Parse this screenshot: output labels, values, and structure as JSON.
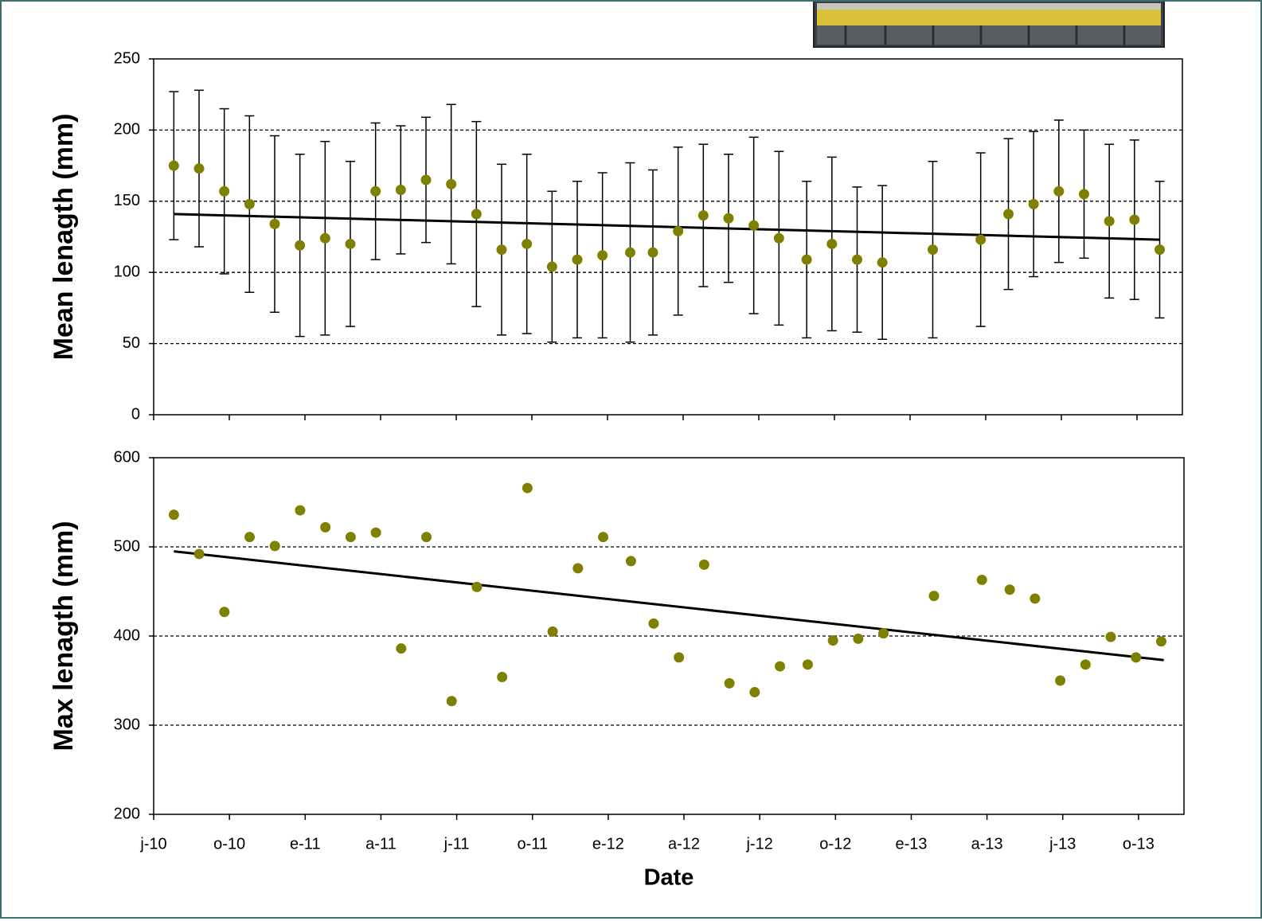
{
  "chart_data": [
    {
      "type": "scatter",
      "ylabel": "Mean lenagth (mm)",
      "xlim": [
        0,
        40.8
      ],
      "xticks": [
        0,
        3,
        6,
        9,
        12,
        15,
        18,
        21,
        24,
        27,
        30,
        33,
        36,
        39
      ],
      "ylim": [
        0,
        250
      ],
      "yticks": [
        0,
        50,
        100,
        150,
        200,
        250
      ],
      "grid": true,
      "series": [
        {
          "color": "#808000",
          "x": [
            0.8,
            1.8,
            2.8,
            3.8,
            4.8,
            5.8,
            6.8,
            7.8,
            8.8,
            9.8,
            10.8,
            11.8,
            12.8,
            13.8,
            14.8,
            15.8,
            16.8,
            17.8,
            18.9,
            19.8,
            20.8,
            21.8,
            22.8,
            23.8,
            24.8,
            25.9,
            26.9,
            27.9,
            28.9,
            30.9,
            32.8,
            33.9,
            34.9,
            35.9,
            36.9,
            37.9,
            38.9,
            39.9
          ],
          "values": [
            175,
            173,
            157,
            148,
            134,
            119,
            124,
            120,
            157,
            158,
            165,
            162,
            141,
            116,
            120,
            104,
            109,
            112,
            114,
            114,
            129,
            140,
            138,
            133,
            124,
            109,
            120,
            109,
            107,
            116,
            123,
            141,
            148,
            157,
            155,
            136,
            137,
            116
          ],
          "errors": [
            52,
            55,
            58,
            62,
            62,
            64,
            68,
            58,
            48,
            45,
            44,
            56,
            65,
            60,
            63,
            53,
            55,
            58,
            63,
            58,
            59,
            50,
            45,
            62,
            61,
            55,
            61,
            51,
            54,
            62,
            61,
            53,
            51,
            50,
            45,
            54,
            56,
            48
          ]
        }
      ],
      "trend": {
        "color": "#000000",
        "x": [
          0.8,
          39.9
        ],
        "values": [
          141,
          123
        ]
      }
    },
    {
      "type": "scatter",
      "ylabel": "Max lenagth (mm)",
      "xlabel": "Date",
      "xlim": [
        0,
        40.8
      ],
      "xticks": [
        {
          "value": 0,
          "label": "j-10"
        },
        {
          "value": 3,
          "label": "o-10"
        },
        {
          "value": 6,
          "label": "e-11"
        },
        {
          "value": 9,
          "label": "a-11"
        },
        {
          "value": 12,
          "label": "j-11"
        },
        {
          "value": 15,
          "label": "o-11"
        },
        {
          "value": 18,
          "label": "e-12"
        },
        {
          "value": 21,
          "label": "a-12"
        },
        {
          "value": 24,
          "label": "j-12"
        },
        {
          "value": 27,
          "label": "o-12"
        },
        {
          "value": 30,
          "label": "e-13"
        },
        {
          "value": 33,
          "label": "a-13"
        },
        {
          "value": 36,
          "label": "j-13"
        },
        {
          "value": 39,
          "label": "o-13"
        }
      ],
      "ylim": [
        200,
        600
      ],
      "yticks": [
        200,
        300,
        400,
        500,
        600
      ],
      "grid": true,
      "series": [
        {
          "color": "#808000",
          "x": [
            0.8,
            1.8,
            2.8,
            3.8,
            4.8,
            5.8,
            6.8,
            7.8,
            8.8,
            9.8,
            10.8,
            11.8,
            12.8,
            13.8,
            14.8,
            15.8,
            16.8,
            17.8,
            18.9,
            19.8,
            20.8,
            21.8,
            22.8,
            23.8,
            24.8,
            25.9,
            26.9,
            27.9,
            28.9,
            30.9,
            32.8,
            33.9,
            34.9,
            35.9,
            36.9,
            37.9,
            38.9,
            39.9
          ],
          "values": [
            536,
            492,
            427,
            511,
            501,
            541,
            522,
            511,
            516,
            386,
            511,
            327,
            455,
            354,
            566,
            405,
            476,
            511,
            484,
            414,
            376,
            480,
            347,
            337,
            366,
            368,
            395,
            397,
            403,
            445,
            463,
            452,
            442,
            350,
            368,
            399,
            376,
            394
          ]
        }
      ],
      "trend": {
        "color": "#000000",
        "x": [
          0.8,
          40.0
        ],
        "values": [
          495,
          373
        ]
      }
    }
  ]
}
